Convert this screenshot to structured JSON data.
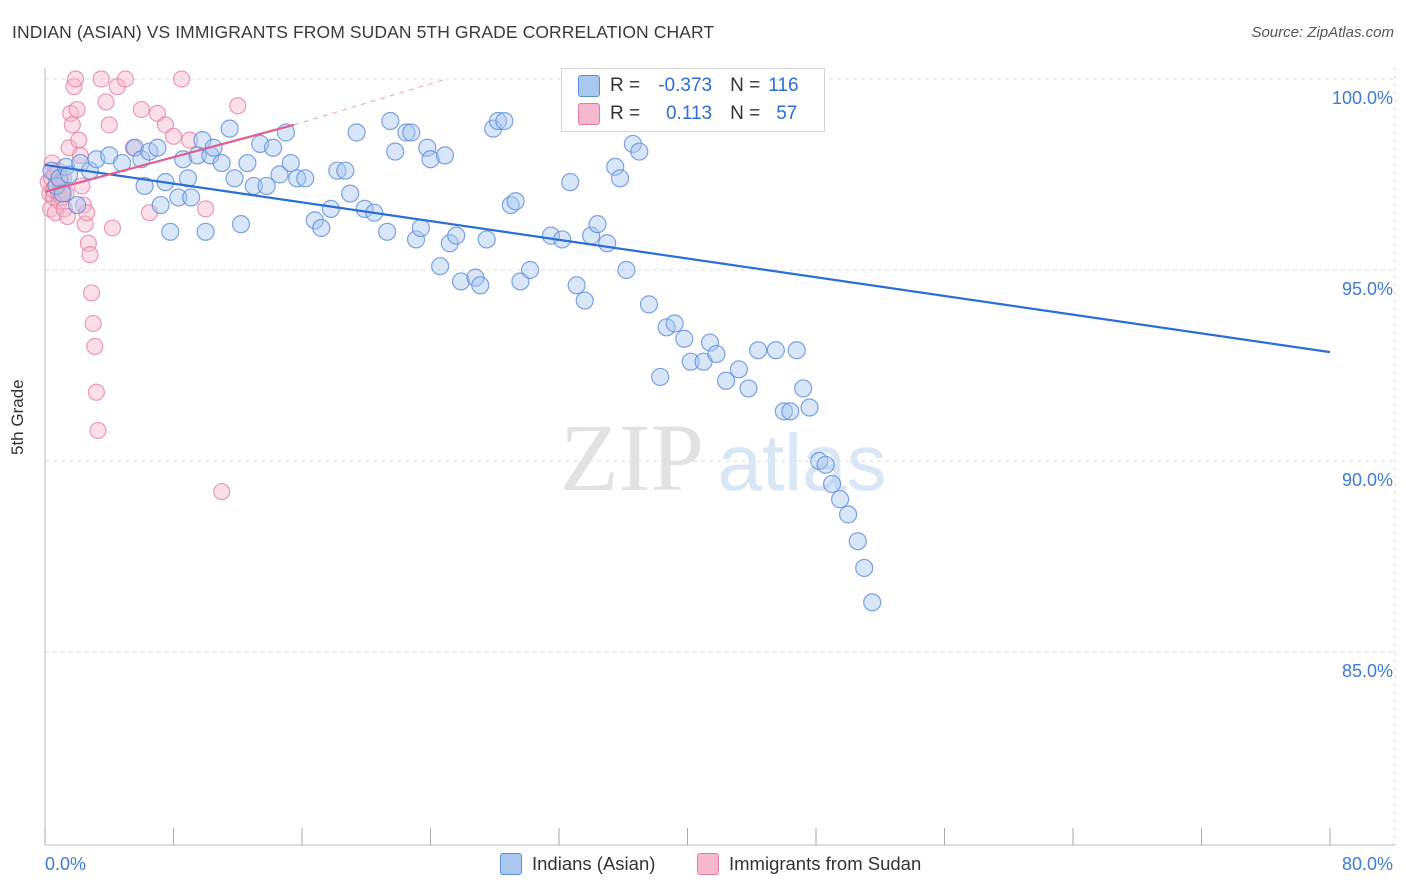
{
  "title": "INDIAN (ASIAN) VS IMMIGRANTS FROM SUDAN 5TH GRADE CORRELATION CHART",
  "source": "Source: ZipAtlas.com",
  "watermark": {
    "zip": "ZIP",
    "atlas": "atlas"
  },
  "colors": {
    "blue_fill": "#a9c8f0",
    "blue_stroke": "#5b8fd8",
    "blue_line": "#2b6fd6",
    "pink_fill": "#f6b8cc",
    "pink_stroke": "#e67c9f",
    "pink_line": "#e0608f",
    "tick_label": "#3d7bd4",
    "grid": "#dddddd"
  },
  "legend": {
    "r_label": "R =",
    "n_label": "N =",
    "series1": {
      "r": "-0.373",
      "n": "116"
    },
    "series2": {
      "r": "0.113",
      "n": "57"
    }
  },
  "chart_data": {
    "type": "scatter",
    "title": "INDIAN (ASIAN) VS IMMIGRANTS FROM SUDAN 5TH GRADE CORRELATION CHART",
    "xlabel": "",
    "ylabel": "5th Grade",
    "xlim": [
      0,
      80
    ],
    "ylim": [
      80.5,
      100.3
    ],
    "x_tick_labels": [
      "0.0%",
      "80.0%"
    ],
    "y_ticks": [
      85,
      90,
      95,
      100
    ],
    "y_tick_labels": [
      "85.0%",
      "90.0%",
      "95.0%",
      "100.0%"
    ],
    "legend_placement": "bottom",
    "series": [
      {
        "name": "Indians (Asian)",
        "r": -0.373,
        "n": 116,
        "trend": {
          "x": [
            0,
            80
          ],
          "y": [
            97.75,
            92.85
          ]
        },
        "points": [
          [
            0.4,
            97.6
          ],
          [
            0.7,
            97.2
          ],
          [
            0.9,
            97.4
          ],
          [
            1.1,
            97.0
          ],
          [
            1.3,
            97.7
          ],
          [
            1.5,
            97.5
          ],
          [
            2.0,
            96.7
          ],
          [
            2.2,
            97.8
          ],
          [
            2.8,
            97.6
          ],
          [
            3.2,
            97.9
          ],
          [
            4.0,
            98.0
          ],
          [
            4.8,
            97.8
          ],
          [
            5.6,
            98.2
          ],
          [
            6.0,
            97.9
          ],
          [
            6.2,
            97.2
          ],
          [
            6.5,
            98.1
          ],
          [
            7.0,
            98.2
          ],
          [
            7.2,
            96.7
          ],
          [
            7.5,
            97.3
          ],
          [
            7.8,
            96.0
          ],
          [
            8.3,
            96.9
          ],
          [
            8.6,
            97.9
          ],
          [
            8.9,
            97.4
          ],
          [
            9.1,
            96.9
          ],
          [
            9.5,
            98.0
          ],
          [
            9.8,
            98.4
          ],
          [
            10.0,
            96.0
          ],
          [
            10.3,
            98.0
          ],
          [
            10.5,
            98.2
          ],
          [
            11.0,
            97.8
          ],
          [
            11.5,
            98.7
          ],
          [
            11.8,
            97.4
          ],
          [
            12.2,
            96.2
          ],
          [
            12.6,
            97.8
          ],
          [
            13.0,
            97.2
          ],
          [
            13.4,
            98.3
          ],
          [
            13.8,
            97.2
          ],
          [
            14.2,
            98.2
          ],
          [
            14.6,
            97.5
          ],
          [
            15.0,
            98.6
          ],
          [
            15.3,
            97.8
          ],
          [
            15.7,
            97.4
          ],
          [
            16.2,
            97.4
          ],
          [
            16.8,
            96.3
          ],
          [
            17.2,
            96.1
          ],
          [
            17.8,
            96.6
          ],
          [
            18.2,
            97.6
          ],
          [
            18.7,
            97.6
          ],
          [
            19.0,
            97.0
          ],
          [
            19.4,
            98.6
          ],
          [
            19.9,
            96.6
          ],
          [
            20.5,
            96.5
          ],
          [
            21.3,
            96.0
          ],
          [
            21.5,
            98.9
          ],
          [
            21.8,
            98.1
          ],
          [
            22.5,
            98.6
          ],
          [
            22.8,
            98.6
          ],
          [
            23.1,
            95.8
          ],
          [
            23.4,
            96.1
          ],
          [
            23.8,
            98.2
          ],
          [
            24.0,
            97.9
          ],
          [
            24.6,
            95.1
          ],
          [
            24.9,
            98.0
          ],
          [
            25.2,
            95.7
          ],
          [
            25.6,
            95.9
          ],
          [
            25.9,
            94.7
          ],
          [
            26.8,
            94.8
          ],
          [
            27.1,
            94.6
          ],
          [
            27.5,
            95.8
          ],
          [
            27.9,
            98.7
          ],
          [
            28.2,
            98.9
          ],
          [
            28.6,
            98.9
          ],
          [
            29.0,
            96.7
          ],
          [
            29.3,
            96.8
          ],
          [
            29.6,
            94.7
          ],
          [
            30.2,
            95.0
          ],
          [
            31.5,
            95.9
          ],
          [
            32.2,
            95.8
          ],
          [
            32.7,
            97.3
          ],
          [
            33.1,
            94.6
          ],
          [
            33.6,
            94.2
          ],
          [
            34.0,
            95.9
          ],
          [
            34.4,
            96.2
          ],
          [
            35.0,
            95.7
          ],
          [
            35.5,
            97.7
          ],
          [
            35.8,
            97.4
          ],
          [
            36.2,
            95.0
          ],
          [
            36.6,
            98.3
          ],
          [
            37.0,
            98.1
          ],
          [
            37.6,
            94.1
          ],
          [
            38.3,
            92.2
          ],
          [
            38.7,
            93.5
          ],
          [
            39.2,
            93.6
          ],
          [
            39.8,
            93.2
          ],
          [
            40.2,
            92.6
          ],
          [
            41.0,
            92.6
          ],
          [
            41.4,
            93.1
          ],
          [
            41.8,
            92.8
          ],
          [
            42.4,
            92.1
          ],
          [
            43.2,
            92.4
          ],
          [
            43.8,
            91.9
          ],
          [
            44.4,
            92.9
          ],
          [
            45.5,
            92.9
          ],
          [
            46.0,
            91.3
          ],
          [
            46.4,
            91.3
          ],
          [
            46.8,
            92.9
          ],
          [
            47.2,
            91.9
          ],
          [
            47.6,
            91.4
          ],
          [
            48.2,
            90.0
          ],
          [
            48.6,
            89.9
          ],
          [
            49.0,
            89.4
          ],
          [
            49.5,
            89.0
          ],
          [
            50.0,
            88.6
          ],
          [
            50.6,
            87.9
          ],
          [
            51.0,
            87.2
          ],
          [
            51.5,
            86.3
          ]
        ]
      },
      {
        "name": "Immigrants from Sudan",
        "r": 0.113,
        "n": 57,
        "trend": {
          "x": [
            0,
            15.5
          ],
          "y": [
            97.05,
            98.8
          ]
        },
        "trend_ext": {
          "x": [
            15.5,
            25
          ],
          "y": [
            98.8,
            100.0
          ]
        },
        "points": [
          [
            0.2,
            97.3
          ],
          [
            0.3,
            97.0
          ],
          [
            0.35,
            96.6
          ],
          [
            0.4,
            97.4
          ],
          [
            0.45,
            97.8
          ],
          [
            0.5,
            97.1
          ],
          [
            0.55,
            96.9
          ],
          [
            0.6,
            97.5
          ],
          [
            0.65,
            96.5
          ],
          [
            0.7,
            97.2
          ],
          [
            0.8,
            97.6
          ],
          [
            0.85,
            97.0
          ],
          [
            0.9,
            96.8
          ],
          [
            0.95,
            97.3
          ],
          [
            1.0,
            97.2
          ],
          [
            1.05,
            96.9
          ],
          [
            1.1,
            97.1
          ],
          [
            1.15,
            97.4
          ],
          [
            1.2,
            96.6
          ],
          [
            1.3,
            97.0
          ],
          [
            1.4,
            96.4
          ],
          [
            1.5,
            98.2
          ],
          [
            1.6,
            99.1
          ],
          [
            1.7,
            98.8
          ],
          [
            1.8,
            99.8
          ],
          [
            1.9,
            100.0
          ],
          [
            2.0,
            99.2
          ],
          [
            2.1,
            98.4
          ],
          [
            2.2,
            98.0
          ],
          [
            2.3,
            97.2
          ],
          [
            2.4,
            96.7
          ],
          [
            2.5,
            96.2
          ],
          [
            2.6,
            96.5
          ],
          [
            2.7,
            95.7
          ],
          [
            2.8,
            95.4
          ],
          [
            2.9,
            94.4
          ],
          [
            3.0,
            93.6
          ],
          [
            3.1,
            93.0
          ],
          [
            3.2,
            91.8
          ],
          [
            3.3,
            90.8
          ],
          [
            3.5,
            100.0
          ],
          [
            3.8,
            99.4
          ],
          [
            4.0,
            98.8
          ],
          [
            4.2,
            96.1
          ],
          [
            4.5,
            99.8
          ],
          [
            5.0,
            100.0
          ],
          [
            5.5,
            98.2
          ],
          [
            6.0,
            99.2
          ],
          [
            6.5,
            96.5
          ],
          [
            7.0,
            99.1
          ],
          [
            7.5,
            98.8
          ],
          [
            8.0,
            98.5
          ],
          [
            8.5,
            100.0
          ],
          [
            9.0,
            98.4
          ],
          [
            10.0,
            96.6
          ],
          [
            11.0,
            89.2
          ],
          [
            12.0,
            99.3
          ]
        ]
      }
    ]
  }
}
